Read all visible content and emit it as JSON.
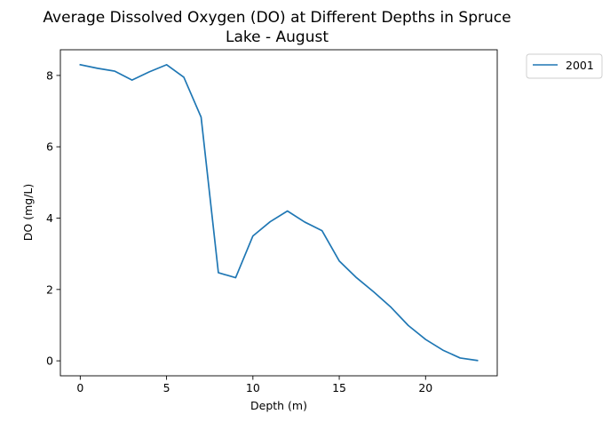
{
  "chart_data": {
    "type": "line",
    "title_line1": "Average Dissolved Oxygen (DO) at Different Depths in Spruce",
    "title_line2": "Lake - August",
    "xlabel": "Depth (m)",
    "ylabel": "DO (mg/L)",
    "xlim": [
      -1.15,
      24.15
    ],
    "ylim": [
      -0.42,
      8.72
    ],
    "xticks": [
      0,
      5,
      10,
      15,
      20
    ],
    "yticks": [
      0,
      2,
      4,
      6,
      8
    ],
    "grid": false,
    "legend_position": "outside upper right",
    "series": [
      {
        "name": "2001",
        "color": "#1f77b4",
        "x": [
          0,
          1,
          2,
          3,
          4,
          5,
          6,
          7,
          8,
          9,
          10,
          11,
          12,
          13,
          14,
          15,
          16,
          17,
          18,
          19,
          20,
          21,
          22,
          23
        ],
        "y": [
          8.3,
          8.2,
          8.12,
          7.87,
          8.1,
          8.3,
          7.95,
          6.83,
          2.47,
          2.33,
          3.5,
          3.9,
          4.2,
          3.89,
          3.65,
          2.8,
          2.33,
          1.93,
          1.5,
          0.99,
          0.6,
          0.3,
          0.08,
          0.01
        ]
      }
    ]
  }
}
